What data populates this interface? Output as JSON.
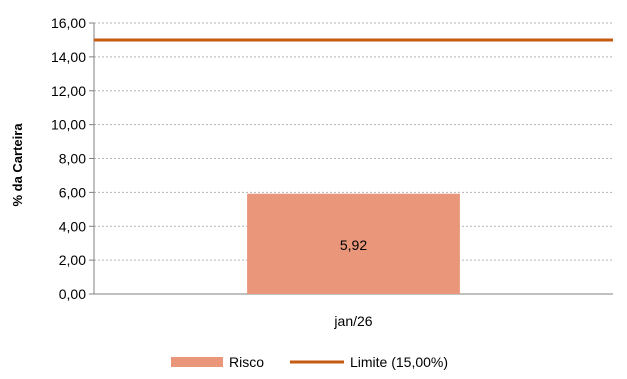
{
  "chart_data": {
    "type": "bar",
    "categories": [
      "jan/26"
    ],
    "series": [
      {
        "name": "Risco",
        "type": "bar",
        "values": [
          5.92
        ],
        "color": "#E9967A"
      },
      {
        "name": "Limite (15,00%)",
        "type": "line",
        "values": [
          15.0
        ],
        "color": "#C55A11"
      }
    ],
    "data_labels": [
      "5,92"
    ],
    "ylabel": "% da Carteira",
    "xlabel": "",
    "ylim": [
      0,
      16
    ],
    "yticks": [
      0,
      2,
      4,
      6,
      8,
      10,
      12,
      14,
      16
    ],
    "ytick_labels": [
      "0,00",
      "2,00",
      "4,00",
      "6,00",
      "8,00",
      "10,00",
      "12,00",
      "14,00",
      "16,00"
    ],
    "grid": true,
    "legend_position": "bottom"
  }
}
